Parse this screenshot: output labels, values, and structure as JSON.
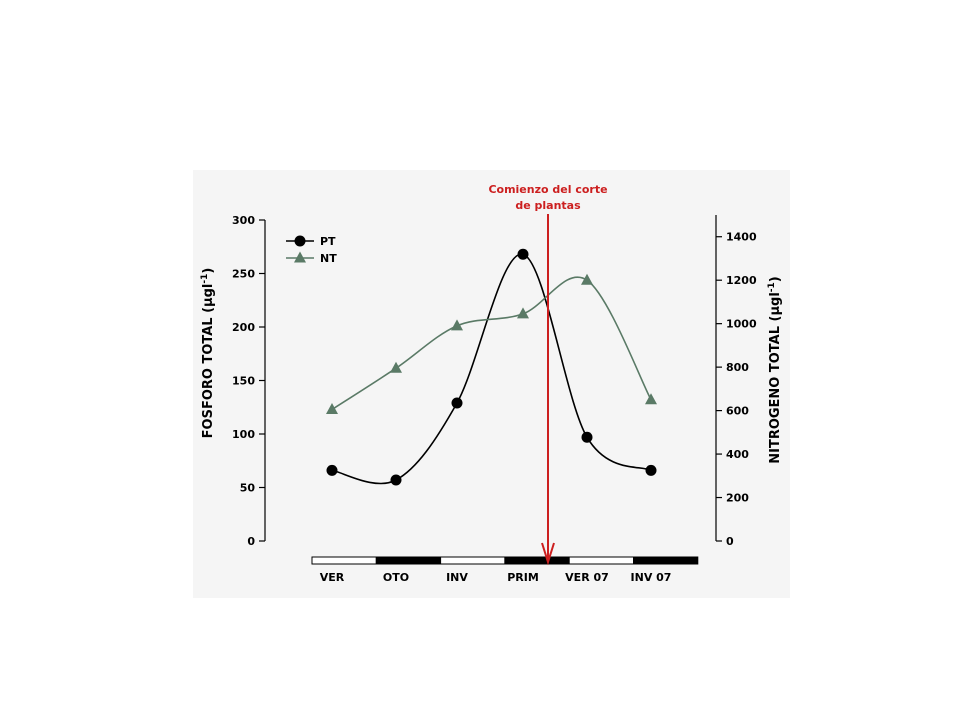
{
  "annotation": {
    "line1": "Comienzo del corte",
    "line2": "de plantas",
    "color": "#cc1f1f"
  },
  "chart_data": {
    "type": "line",
    "categories": [
      "VER",
      "OTO",
      "INV",
      "PRIM",
      "VER 07",
      "INV 07"
    ],
    "y_left": {
      "label": "FOSFORO TOTAL",
      "unit_prefix": "µgl",
      "unit_exp": "-1",
      "ylim": [
        0,
        300
      ],
      "ticks": [
        0,
        50,
        100,
        150,
        200,
        250,
        300
      ]
    },
    "y_right": {
      "label": "NITROGENO TOTAL",
      "unit_prefix": "µgl",
      "unit_exp": "-1",
      "ylim": [
        0,
        1500
      ],
      "ticks": [
        0,
        200,
        400,
        600,
        800,
        1000,
        1200,
        1400
      ]
    },
    "series": [
      {
        "name": "PT",
        "axis": "left",
        "marker": "circle",
        "color": "#000000",
        "values": [
          66,
          57,
          129,
          268,
          97,
          66
        ]
      },
      {
        "name": "NT",
        "axis": "right",
        "marker": "triangle",
        "color": "#5a7a66",
        "values": [
          605,
          795,
          990,
          1045,
          1200,
          650
        ]
      }
    ],
    "season_bar_fills": [
      "white",
      "black",
      "white",
      "black",
      "white",
      "black"
    ],
    "legend_position": "top-left",
    "grid": false
  }
}
